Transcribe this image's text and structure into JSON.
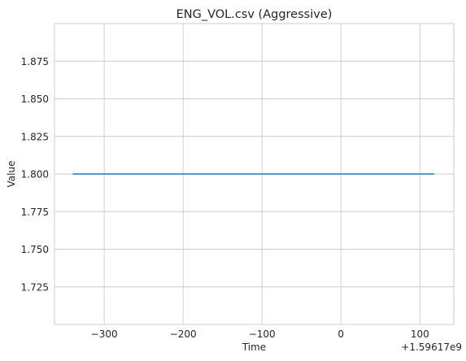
{
  "chart_data": {
    "type": "line",
    "title": "ENG_VOL.csv (Aggressive)",
    "xlabel": "Time",
    "ylabel": "Value",
    "x_offset_label": "+1.59617e9",
    "xlim": [
      -363,
      143
    ],
    "ylim": [
      1.7,
      1.9
    ],
    "xticks": [
      -300,
      -200,
      -100,
      0,
      100
    ],
    "xtick_labels": [
      "−300",
      "−200",
      "−100",
      "0",
      "100"
    ],
    "yticks": [
      1.725,
      1.75,
      1.775,
      1.8,
      1.825,
      1.85,
      1.875
    ],
    "ytick_labels": [
      "1.725",
      "1.750",
      "1.775",
      "1.800",
      "1.825",
      "1.850",
      "1.875"
    ],
    "grid": true,
    "line_color": "#1f77b4",
    "series": [
      {
        "x": [
          -340,
          118
        ],
        "y": [
          1.8,
          1.8
        ]
      }
    ]
  }
}
